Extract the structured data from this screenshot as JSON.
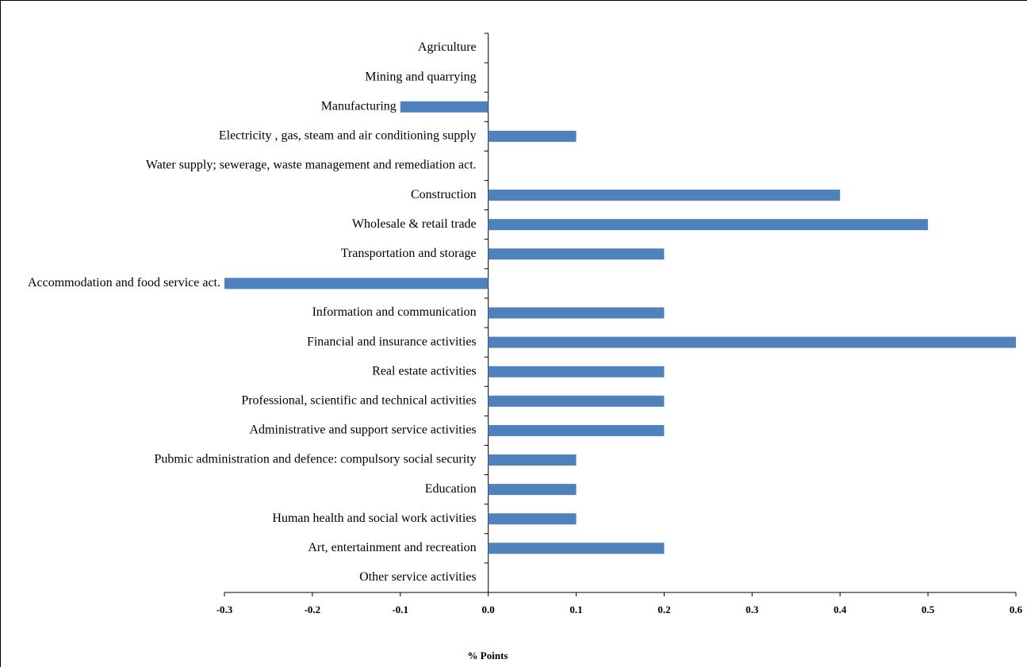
{
  "chart_data": {
    "type": "bar",
    "orientation": "horizontal",
    "x_label": "% Points",
    "categories": [
      "Agriculture",
      "Mining and quarrying",
      "Manufacturing",
      "Electricity , gas, steam and air conditioning supply",
      "Water supply; sewerage, waste management and remediation act.",
      "Construction",
      "Wholesale & retail trade",
      "Transportation and storage",
      "Accommodation and food service act.",
      "Information and communication",
      "Financial and insurance activities",
      "Real estate activities",
      "Professional, scientific and technical activities",
      "Administrative and support service activities",
      "Pubmic administration  and defence: compulsory social security",
      "Education",
      "Human health and social work activities",
      "Art, entertainment and recreation",
      "Other service activities"
    ],
    "values": [
      0,
      0,
      -0.1,
      0.1,
      0,
      0.4,
      0.5,
      0.2,
      -0.3,
      0.2,
      0.6,
      0.2,
      0.2,
      0.2,
      0.1,
      0.1,
      0.1,
      0.2,
      0
    ],
    "color": "#4f81bd",
    "xlim": [
      -0.3,
      0.6
    ],
    "xticks": [
      -0.3,
      -0.2,
      -0.1,
      {
        "value": 0,
        "label": "0.0"
      },
      0.1,
      0.2,
      0.3,
      0.4,
      0.5,
      0.6
    ],
    "grid": false
  }
}
